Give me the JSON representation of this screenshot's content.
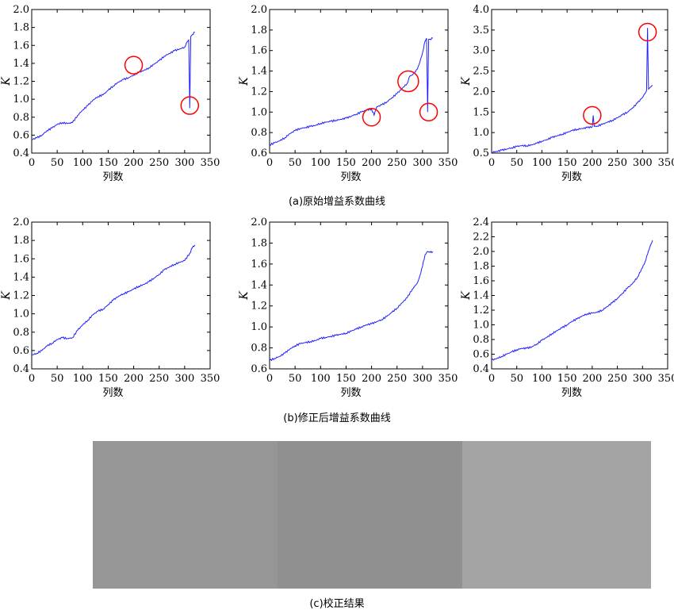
{
  "captions": {
    "a": "(a)原始增益系数曲线",
    "b": "(b)修正后增益系数曲线",
    "c": "(c)校正结果"
  },
  "line_color": "#1f1fff",
  "marker_color": "#ff0000",
  "corrected_image": {
    "bands": [
      {
        "name": "left",
        "color": "#969696"
      },
      {
        "name": "middle",
        "color": "#909090"
      },
      {
        "name": "right",
        "color": "#a4a4a4"
      }
    ]
  },
  "chart_data": [
    {
      "type": "line",
      "id": "a1",
      "xlabel": "列数",
      "ylabel": "K",
      "xlim": [
        0,
        350
      ],
      "ylim": [
        0.4,
        2.0
      ],
      "xticks": [
        "0",
        "50",
        "100",
        "150",
        "200",
        "250",
        "300",
        "350"
      ],
      "yticks": [
        "0.4",
        "0.6",
        "0.8",
        "1.0",
        "1.2",
        "1.4",
        "1.6",
        "1.8",
        "2.0"
      ],
      "x": [
        0,
        10,
        20,
        30,
        40,
        50,
        60,
        70,
        80,
        90,
        100,
        110,
        120,
        130,
        140,
        150,
        160,
        170,
        180,
        190,
        200,
        210,
        220,
        230,
        240,
        250,
        260,
        270,
        280,
        290,
        300,
        305,
        308,
        310,
        312,
        315,
        320
      ],
      "y": [
        0.55,
        0.57,
        0.6,
        0.65,
        0.68,
        0.72,
        0.74,
        0.73,
        0.74,
        0.82,
        0.88,
        0.93,
        0.99,
        1.03,
        1.05,
        1.1,
        1.15,
        1.19,
        1.22,
        1.24,
        1.27,
        1.3,
        1.32,
        1.35,
        1.39,
        1.43,
        1.48,
        1.51,
        1.54,
        1.56,
        1.58,
        1.64,
        1.66,
        0.9,
        1.7,
        1.72,
        1.75
      ],
      "annotations": [
        {
          "x": 200,
          "y": 1.38
        },
        {
          "x": 310,
          "y": 0.93
        }
      ]
    },
    {
      "type": "line",
      "id": "a2",
      "xlabel": "列数",
      "ylabel": "K",
      "xlim": [
        0,
        350
      ],
      "ylim": [
        0.6,
        2.0
      ],
      "xticks": [
        "0",
        "50",
        "100",
        "150",
        "200",
        "250",
        "300",
        "350"
      ],
      "yticks": [
        "0.6",
        "0.8",
        "1.0",
        "1.2",
        "1.4",
        "1.6",
        "1.8",
        "2.0"
      ],
      "x": [
        0,
        10,
        20,
        30,
        40,
        50,
        60,
        70,
        80,
        90,
        100,
        110,
        120,
        130,
        140,
        150,
        160,
        170,
        180,
        190,
        200,
        205,
        210,
        220,
        230,
        240,
        250,
        260,
        270,
        275,
        280,
        290,
        295,
        300,
        305,
        308,
        310,
        312,
        315,
        320
      ],
      "y": [
        0.68,
        0.7,
        0.72,
        0.75,
        0.79,
        0.82,
        0.84,
        0.85,
        0.86,
        0.87,
        0.89,
        0.9,
        0.91,
        0.92,
        0.93,
        0.94,
        0.96,
        0.98,
        1.0,
        1.02,
        1.03,
        0.97,
        1.05,
        1.07,
        1.1,
        1.14,
        1.18,
        1.23,
        1.28,
        1.35,
        1.36,
        1.42,
        1.49,
        1.58,
        1.69,
        1.72,
        1.0,
        1.71,
        1.71,
        1.72
      ],
      "annotations": [
        {
          "x": 200,
          "y": 0.95
        },
        {
          "x": 272,
          "y": 1.3
        },
        {
          "x": 312,
          "y": 1.0
        }
      ]
    },
    {
      "type": "line",
      "id": "a3",
      "xlabel": "列数",
      "ylabel": "K",
      "xlim": [
        0,
        350
      ],
      "ylim": [
        0.5,
        4.0
      ],
      "xticks": [
        "0",
        "50",
        "100",
        "150",
        "200",
        "250",
        "300",
        "350"
      ],
      "yticks": [
        "0.5",
        "1.0",
        "1.5",
        "2.0",
        "2.5",
        "3.0",
        "3.5",
        "4.0"
      ],
      "x": [
        0,
        10,
        20,
        30,
        40,
        50,
        60,
        70,
        80,
        90,
        100,
        110,
        120,
        130,
        140,
        150,
        160,
        170,
        180,
        190,
        200,
        202,
        204,
        210,
        220,
        230,
        240,
        250,
        260,
        270,
        280,
        290,
        300,
        305,
        308,
        310,
        312,
        315,
        320
      ],
      "y": [
        0.52,
        0.54,
        0.57,
        0.6,
        0.63,
        0.66,
        0.68,
        0.68,
        0.7,
        0.74,
        0.79,
        0.83,
        0.88,
        0.92,
        0.96,
        1.0,
        1.05,
        1.08,
        1.1,
        1.12,
        1.14,
        1.42,
        1.15,
        1.16,
        1.2,
        1.25,
        1.3,
        1.36,
        1.43,
        1.5,
        1.6,
        1.72,
        1.86,
        1.95,
        2.02,
        3.55,
        2.06,
        2.1,
        2.15
      ],
      "annotations": [
        {
          "x": 200,
          "y": 1.42
        },
        {
          "x": 310,
          "y": 3.45
        }
      ]
    },
    {
      "type": "line",
      "id": "b1",
      "xlabel": "列数",
      "ylabel": "K",
      "xlim": [
        0,
        350
      ],
      "ylim": [
        0.4,
        2.0
      ],
      "xticks": [
        "0",
        "50",
        "100",
        "150",
        "200",
        "250",
        "300",
        "350"
      ],
      "yticks": [
        "0.4",
        "0.6",
        "0.8",
        "1.0",
        "1.2",
        "1.4",
        "1.6",
        "1.8",
        "2.0"
      ],
      "x": [
        0,
        10,
        20,
        30,
        40,
        50,
        60,
        70,
        80,
        90,
        100,
        110,
        120,
        130,
        140,
        150,
        160,
        170,
        180,
        190,
        200,
        210,
        220,
        230,
        240,
        250,
        260,
        270,
        280,
        290,
        300,
        310,
        315,
        320
      ],
      "y": [
        0.55,
        0.57,
        0.6,
        0.65,
        0.68,
        0.72,
        0.74,
        0.73,
        0.74,
        0.82,
        0.88,
        0.93,
        0.99,
        1.03,
        1.05,
        1.1,
        1.15,
        1.19,
        1.22,
        1.24,
        1.27,
        1.3,
        1.32,
        1.35,
        1.39,
        1.43,
        1.48,
        1.51,
        1.54,
        1.56,
        1.58,
        1.66,
        1.72,
        1.75
      ]
    },
    {
      "type": "line",
      "id": "b2",
      "xlabel": "列数",
      "ylabel": "K",
      "xlim": [
        0,
        350
      ],
      "ylim": [
        0.6,
        2.0
      ],
      "xticks": [
        "0",
        "50",
        "100",
        "150",
        "200",
        "250",
        "300",
        "350"
      ],
      "yticks": [
        "0.6",
        "0.8",
        "1.0",
        "1.2",
        "1.4",
        "1.6",
        "1.8",
        "2.0"
      ],
      "x": [
        0,
        10,
        20,
        30,
        40,
        50,
        60,
        70,
        80,
        90,
        100,
        110,
        120,
        130,
        140,
        150,
        160,
        170,
        180,
        190,
        200,
        210,
        220,
        230,
        240,
        250,
        260,
        270,
        280,
        290,
        295,
        300,
        305,
        310,
        315,
        320
      ],
      "y": [
        0.68,
        0.7,
        0.72,
        0.75,
        0.79,
        0.82,
        0.84,
        0.85,
        0.86,
        0.87,
        0.89,
        0.9,
        0.91,
        0.92,
        0.93,
        0.94,
        0.96,
        0.98,
        1.0,
        1.02,
        1.03,
        1.05,
        1.07,
        1.1,
        1.14,
        1.18,
        1.23,
        1.28,
        1.36,
        1.42,
        1.49,
        1.58,
        1.69,
        1.72,
        1.71,
        1.72
      ]
    },
    {
      "type": "line",
      "id": "b3",
      "xlabel": "列数",
      "ylabel": "K",
      "xlim": [
        0,
        350
      ],
      "ylim": [
        0.4,
        2.4
      ],
      "xticks": [
        "0",
        "50",
        "100",
        "150",
        "200",
        "250",
        "300",
        "350"
      ],
      "yticks": [
        "0.4",
        "0.6",
        "0.8",
        "1.0",
        "1.2",
        "1.4",
        "1.6",
        "1.8",
        "2.0",
        "2.2",
        "2.4"
      ],
      "x": [
        0,
        10,
        20,
        30,
        40,
        50,
        60,
        70,
        80,
        90,
        100,
        110,
        120,
        130,
        140,
        150,
        160,
        170,
        180,
        190,
        200,
        210,
        220,
        230,
        240,
        250,
        260,
        270,
        280,
        290,
        300,
        305,
        310,
        315,
        320
      ],
      "y": [
        0.52,
        0.54,
        0.57,
        0.6,
        0.63,
        0.66,
        0.68,
        0.68,
        0.7,
        0.74,
        0.79,
        0.83,
        0.88,
        0.92,
        0.96,
        1.0,
        1.05,
        1.08,
        1.12,
        1.15,
        1.16,
        1.17,
        1.2,
        1.25,
        1.3,
        1.36,
        1.43,
        1.5,
        1.56,
        1.65,
        1.78,
        1.86,
        1.96,
        2.07,
        2.15
      ]
    }
  ]
}
